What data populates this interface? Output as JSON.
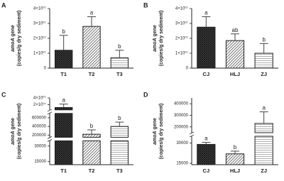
{
  "chart_data": [
    {
      "panel_label": "A",
      "type": "bar",
      "ylabel": {
        "gene_name": "amoA",
        "text": "gene",
        "unit": "(copies/g dry sediment)"
      },
      "categories": [
        "T1",
        "T2",
        "T3"
      ],
      "values": [
        12000000,
        28000000,
        7000000
      ],
      "errors": [
        10000000,
        6500000,
        5000000
      ],
      "significance": [
        "b",
        "a",
        "b"
      ],
      "patterns": [
        "crosshatch",
        "diagonal",
        "horizontal"
      ],
      "segments": [
        {
          "ylim": [
            0,
            40000000
          ],
          "yticks": [
            0,
            {
              "value": 10000000,
              "label": "1×10⁰⁷"
            },
            {
              "value": 20000000,
              "label": "2×10⁰⁷"
            },
            {
              "value": 30000000,
              "label": "3×10⁰⁷"
            },
            {
              "value": 40000000,
              "label": "4×10⁰⁷"
            }
          ]
        }
      ]
    },
    {
      "panel_label": "B",
      "type": "bar",
      "ylabel": {
        "gene_name": "amoA",
        "text": "gene",
        "unit": "(copies/g dry sediment)"
      },
      "categories": [
        "CJ",
        "HLJ",
        "ZJ"
      ],
      "values": [
        27500000,
        18500000,
        10000000
      ],
      "errors": [
        7000000,
        4500000,
        6500000
      ],
      "significance": [
        "a",
        "ab",
        "b"
      ],
      "patterns": [
        "crosshatch",
        "diagonal",
        "horizontal"
      ],
      "segments": [
        {
          "ylim": [
            0,
            40000000
          ],
          "yticks": [
            0,
            {
              "value": 10000000,
              "label": "1×10⁰⁷"
            },
            {
              "value": 20000000,
              "label": "2×10⁰⁷"
            },
            {
              "value": 30000000,
              "label": "3×10⁰⁷"
            },
            {
              "value": 40000000,
              "label": "4×10⁰⁷"
            }
          ]
        }
      ]
    },
    {
      "panel_label": "C",
      "type": "bar",
      "ylabel": {
        "gene_name": "amoA",
        "text": "gene",
        "unit": "(copies/g dry sediment)"
      },
      "categories": [
        "T1",
        "T2",
        "T3"
      ],
      "values": [
        12000000,
        220000,
        400000
      ],
      "errors": [
        10000000,
        100000,
        100000
      ],
      "significance": [
        "a",
        "b",
        "b"
      ],
      "patterns": [
        "crosshatch",
        "diagonal",
        "horizontal"
      ],
      "segments": [
        {
          "ylim": [
            12000,
            35000
          ],
          "yticks": [
            15000,
            30000
          ]
        },
        {
          "ylim": [
            150000,
            700000
          ],
          "yticks": [
            200000,
            400000,
            600000
          ]
        },
        {
          "ylim": [
            5000000,
            40000000
          ],
          "yticks": [
            {
              "value": 20000000,
              "label": "2×10⁰⁷"
            },
            {
              "value": 40000000,
              "label": "4×10⁰⁷"
            }
          ]
        }
      ]
    },
    {
      "panel_label": "D",
      "type": "bar",
      "ylabel": {
        "gene_name": "amoA",
        "text": "gene",
        "unit": "(copies/g dry sediment)"
      },
      "categories": [
        "CJ",
        "HLJ",
        "ZJ"
      ],
      "values": [
        29000,
        22000,
        230000
      ],
      "errors": [
        1500,
        2000,
        100000
      ],
      "significance": [
        "a",
        "b",
        "a"
      ],
      "patterns": [
        "crosshatch",
        "diagonal",
        "horizontal"
      ],
      "segments": [
        {
          "ylim": [
            14000,
            35000
          ],
          "yticks": [
            15000,
            30000
          ]
        },
        {
          "ylim": [
            150000,
            450000
          ],
          "yticks": [
            200000,
            300000,
            400000
          ]
        }
      ]
    }
  ]
}
